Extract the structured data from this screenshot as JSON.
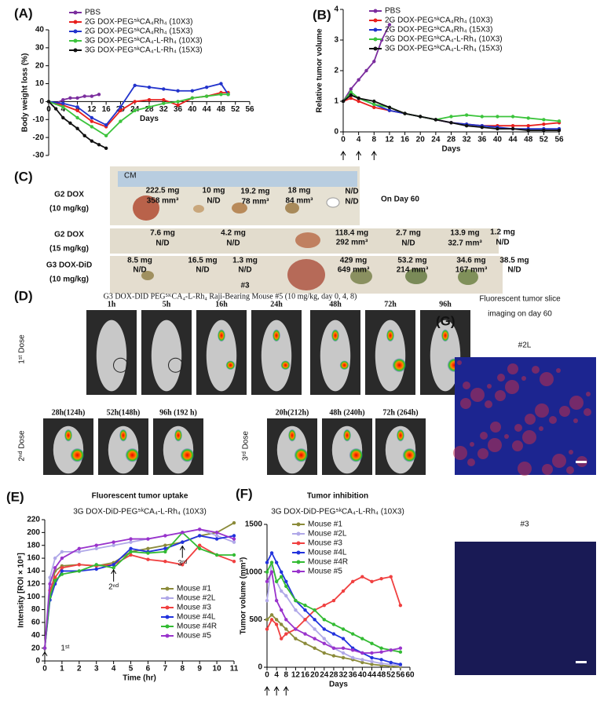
{
  "chart_data": [
    {
      "type": "line",
      "panel_label": "(A)",
      "xlabel": "Days",
      "ylabel": "Body weight loss (%)",
      "xlim": [
        0,
        56
      ],
      "xticks": [
        0,
        4,
        8,
        12,
        16,
        20,
        24,
        28,
        32,
        36,
        40,
        44,
        48,
        52,
        56
      ],
      "ylim": [
        -30,
        40
      ],
      "yticks": [
        -30,
        -20,
        -10,
        0,
        10,
        20,
        30,
        40
      ],
      "x_axis_at": 0,
      "legend": "upper left",
      "series": [
        {
          "name": "PBS",
          "color": "#7b2d9e",
          "x": [
            0,
            2,
            4,
            6,
            8,
            10,
            12,
            14
          ],
          "values": [
            0,
            -1,
            1,
            2,
            2,
            3,
            3,
            4
          ]
        },
        {
          "name": "2G DOX-PEG⁵ᵏCA₄Rh₄ (10X3)",
          "color": "#e8201e",
          "x": [
            0,
            4,
            8,
            12,
            16,
            20,
            24,
            28,
            32,
            36,
            40,
            44,
            48,
            50
          ],
          "values": [
            0,
            -2,
            -5,
            -11,
            -14,
            -5,
            0,
            1,
            1,
            -2,
            2,
            3,
            5,
            5
          ]
        },
        {
          "name": "2G DOX-PEG⁵ᵏCA₄Rh₄ (15X3)",
          "color": "#2233cc",
          "x": [
            0,
            4,
            8,
            12,
            16,
            20,
            24,
            28,
            32,
            36,
            40,
            44,
            48,
            50
          ],
          "values": [
            0,
            -1,
            -3,
            -9,
            -13,
            -3,
            9,
            8,
            7,
            6,
            6,
            8,
            10,
            4
          ]
        },
        {
          "name": "3G DOX-PEG⁵ᵏCA₄-L-Rh₄ (10X3)",
          "color": "#3cc43c",
          "x": [
            0,
            4,
            8,
            12,
            16,
            20,
            24,
            28,
            32,
            36,
            40,
            44,
            48,
            50
          ],
          "values": [
            0,
            -3,
            -9,
            -14,
            -19,
            -11,
            -5,
            -3,
            -1,
            0,
            2,
            3,
            4,
            4
          ]
        },
        {
          "name": "3G DOX-PEG⁵ᵏCA₄-L-Rh₄ (15X3)",
          "color": "#111111",
          "x": [
            0,
            2,
            4,
            6,
            8,
            10,
            12,
            14,
            16
          ],
          "values": [
            0,
            -4,
            -9,
            -12,
            -15,
            -19,
            -22,
            -24,
            -26
          ]
        }
      ]
    },
    {
      "type": "line",
      "panel_label": "(B)",
      "xlabel": "Days",
      "ylabel": "Relative tumor volume",
      "xlim": [
        0,
        56
      ],
      "xticks": [
        0,
        4,
        8,
        12,
        16,
        20,
        24,
        28,
        32,
        36,
        40,
        44,
        48,
        52,
        56
      ],
      "ylim": [
        0,
        4
      ],
      "yticks": [
        0,
        1,
        2,
        3,
        4
      ],
      "legend": "upper left",
      "dose_days": [
        0,
        4,
        8
      ],
      "series": [
        {
          "name": "PBS",
          "color": "#7b2d9e",
          "x": [
            0,
            2,
            4,
            6,
            8,
            10,
            12
          ],
          "values": [
            1,
            1.4,
            1.7,
            2.0,
            2.3,
            3.0,
            3.5
          ]
        },
        {
          "name": "2G DOX-PEG⁵ᵏCA₄Rh₄ (10X3)",
          "color": "#e8201e",
          "x": [
            0,
            2,
            4,
            8,
            12,
            16,
            20,
            24,
            28,
            32,
            36,
            40,
            44,
            48,
            52,
            56
          ],
          "values": [
            1,
            1.1,
            1,
            0.8,
            0.7,
            0.6,
            0.5,
            0.4,
            0.3,
            0.25,
            0.2,
            0.2,
            0.2,
            0.2,
            0.25,
            0.3
          ]
        },
        {
          "name": "2G DOX-PEG⁵ᵏCA₄Rh₄ (15X3)",
          "color": "#2233cc",
          "x": [
            0,
            2,
            4,
            8,
            12,
            16,
            20,
            24,
            28,
            32,
            36,
            40,
            44,
            48,
            52,
            56
          ],
          "values": [
            1,
            1.2,
            1.1,
            0.9,
            0.7,
            0.6,
            0.5,
            0.4,
            0.3,
            0.25,
            0.2,
            0.15,
            0.1,
            0.1,
            0.1,
            0.1
          ]
        },
        {
          "name": "3G DOX-PEG⁵ᵏCA₄-L-Rh₄ (10X3)",
          "color": "#3cc43c",
          "x": [
            0,
            2,
            4,
            8,
            12,
            16,
            20,
            24,
            28,
            32,
            36,
            40,
            44,
            48,
            52,
            56
          ],
          "values": [
            1,
            1.3,
            1.1,
            0.9,
            0.8,
            0.6,
            0.5,
            0.4,
            0.5,
            0.55,
            0.5,
            0.5,
            0.5,
            0.45,
            0.4,
            0.35
          ]
        },
        {
          "name": "3G DOX-PEG⁵ᵏCA₄-L-Rh₄ (15X3)",
          "color": "#111111",
          "x": [
            0,
            2,
            4,
            8,
            12,
            16,
            20,
            24,
            28,
            32,
            36,
            40,
            44,
            48,
            52,
            56
          ],
          "values": [
            1,
            1.2,
            1.1,
            1.0,
            0.8,
            0.6,
            0.5,
            0.4,
            0.3,
            0.2,
            0.15,
            0.1,
            0.1,
            0.05,
            0.05,
            0.05
          ]
        }
      ]
    },
    {
      "type": "line",
      "panel_label": "(E)",
      "title": "Fluorescent tumor uptake",
      "subtitle": "3G DOX-DiD-PEG⁵ᵏCA₄-L-Rh₄ (10X3)",
      "xlabel": "Time (hr)",
      "ylabel": "Intensity [ROI × 10⁸]",
      "xlim": [
        0,
        11
      ],
      "xticks": [
        0,
        1,
        2,
        3,
        4,
        5,
        6,
        7,
        8,
        9,
        10,
        11
      ],
      "ylim": [
        0,
        220
      ],
      "yticks": [
        0,
        20,
        40,
        60,
        80,
        100,
        120,
        140,
        160,
        180,
        200,
        220
      ],
      "legend": "lower right",
      "annotations": [
        {
          "text": "1ˢᵗ",
          "x": 0,
          "y": 20
        },
        {
          "text": "2ⁿᵈ",
          "x": 4,
          "y": 148
        },
        {
          "text": "3ʳᵈ",
          "x": 8,
          "y": 185
        }
      ],
      "x": [
        0,
        0.3,
        0.6,
        1,
        2,
        3,
        4,
        5,
        6,
        7,
        8,
        9,
        10,
        11
      ],
      "series": [
        {
          "name": "Mouse #1",
          "color": "#8b8b3a",
          "values": [
            20,
            100,
            140,
            148,
            150,
            148,
            153,
            170,
            175,
            180,
            185,
            195,
            200,
            215
          ]
        },
        {
          "name": "Mouse #2L",
          "color": "#b0a8e8",
          "values": [
            20,
            130,
            160,
            170,
            170,
            175,
            180,
            185,
            190,
            195,
            200,
            205,
            195,
            185
          ]
        },
        {
          "name": "Mouse #3",
          "color": "#f04040",
          "values": [
            20,
            110,
            130,
            145,
            150,
            148,
            150,
            165,
            158,
            155,
            150,
            180,
            165,
            155
          ]
        },
        {
          "name": "Mouse #4L",
          "color": "#2233dd",
          "values": [
            20,
            95,
            120,
            140,
            140,
            143,
            150,
            175,
            170,
            175,
            185,
            195,
            190,
            195
          ]
        },
        {
          "name": "Mouse #4R",
          "color": "#33bb33",
          "values": [
            20,
            100,
            125,
            135,
            140,
            150,
            145,
            170,
            168,
            170,
            200,
            175,
            165,
            165
          ]
        },
        {
          "name": "Mouse #5",
          "color": "#9933cc",
          "values": [
            20,
            120,
            145,
            160,
            175,
            180,
            185,
            190,
            190,
            195,
            200,
            205,
            200,
            190
          ]
        }
      ]
    },
    {
      "type": "line",
      "panel_label": "(F)",
      "title": "Tumor inhibition",
      "subtitle": "3G DOX-DiD-PEG⁵ᵏCA₄-L-Rh₄ (10X3)",
      "xlabel": "Days",
      "ylabel": "Tumor volume (mm³)",
      "xlim": [
        0,
        60
      ],
      "xticks": [
        0,
        4,
        8,
        12,
        16,
        20,
        24,
        28,
        32,
        36,
        40,
        44,
        48,
        52,
        56,
        60
      ],
      "ylim": [
        0,
        1500
      ],
      "yticks": [
        0,
        500,
        1000,
        1500
      ],
      "legend": "upper left",
      "dose_days": [
        0,
        4,
        8
      ],
      "x": [
        0,
        2,
        4,
        6,
        8,
        12,
        16,
        20,
        24,
        28,
        32,
        36,
        40,
        44,
        48,
        52,
        56
      ],
      "series": [
        {
          "name": "Mouse #1",
          "color": "#8b8b3a",
          "values": [
            500,
            550,
            500,
            450,
            400,
            300,
            250,
            200,
            150,
            120,
            100,
            80,
            50,
            30,
            20,
            10,
            5
          ]
        },
        {
          "name": "Mouse #2L",
          "color": "#b0a8e8",
          "values": [
            700,
            1100,
            900,
            800,
            750,
            600,
            500,
            400,
            300,
            200,
            150,
            100,
            80,
            60,
            40,
            30,
            20
          ]
        },
        {
          "name": "Mouse #3",
          "color": "#f04040",
          "values": [
            400,
            500,
            450,
            300,
            350,
            400,
            500,
            600,
            650,
            700,
            800,
            900,
            950,
            900,
            930,
            950,
            650
          ]
        },
        {
          "name": "Mouse #4L",
          "color": "#2233dd",
          "values": [
            1100,
            1200,
            1100,
            1000,
            900,
            700,
            600,
            500,
            400,
            350,
            300,
            200,
            150,
            100,
            80,
            50,
            30
          ]
        },
        {
          "name": "Mouse #4R",
          "color": "#33bb33",
          "values": [
            1000,
            1100,
            900,
            950,
            850,
            700,
            650,
            600,
            500,
            450,
            400,
            350,
            300,
            250,
            200,
            180,
            160
          ]
        },
        {
          "name": "Mouse #5",
          "color": "#9933cc",
          "values": [
            900,
            1000,
            700,
            600,
            500,
            400,
            350,
            300,
            250,
            200,
            200,
            180,
            150,
            150,
            160,
            180,
            200
          ]
        }
      ]
    }
  ],
  "panel_c": {
    "label": "(C)",
    "rows": [
      "G2 DOX",
      "(10 mg/kg)",
      "G2 DOX",
      "(15 mg/kg)",
      "G3 DOX-DiD",
      "(10 mg/kg)"
    ],
    "ruler": "CM",
    "day": "On Day 60",
    "notes": [
      "222.5 mg",
      "358 mm³",
      "10 mg",
      "N/D",
      "19.2 mg",
      "78 mm³",
      "18 mg",
      "84 mm³",
      "N/D",
      "N/D",
      "7.6 mg",
      "N/D",
      "4.2 mg",
      "N/D",
      "118.4 mg",
      "292 mm³",
      "2.7 mg",
      "N/D",
      "13.9 mg",
      "32.7 mm³",
      "1.2 mg",
      "N/D",
      "8.5 mg",
      "N/D",
      "16.5 mg",
      "N/D",
      "1.3 mg",
      "N/D",
      "429 mg",
      "649 mm³",
      "53.2 mg",
      "214 mm³",
      "34.6 mg",
      "167 mm³",
      "38.5 mg",
      "N/D",
      "#3"
    ]
  },
  "panel_d": {
    "label": "(D)",
    "title": "G3 DOX-DID PEG⁵ᴷCA₄-L-Rh₄ Raji-Bearing Mouse #5 (10 mg/kg, day 0, 4, 8)",
    "doses": [
      "1ˢᵗ Dose",
      "2ⁿᵈ Dose",
      "3ʳᵈ Dose"
    ],
    "times": [
      "1h",
      "5h",
      "16h",
      "24h",
      "48h",
      "72h",
      "96h",
      "28h(124h)",
      "52h(148h)",
      "96h (192 h)",
      "20h(212h)",
      "48h (240h)",
      "72h (264h)"
    ]
  },
  "panel_g": {
    "label": "(G)",
    "title": [
      "Fluorescent tumor slice",
      "imaging on day 60"
    ],
    "samples": [
      "#2L",
      "#3"
    ]
  }
}
